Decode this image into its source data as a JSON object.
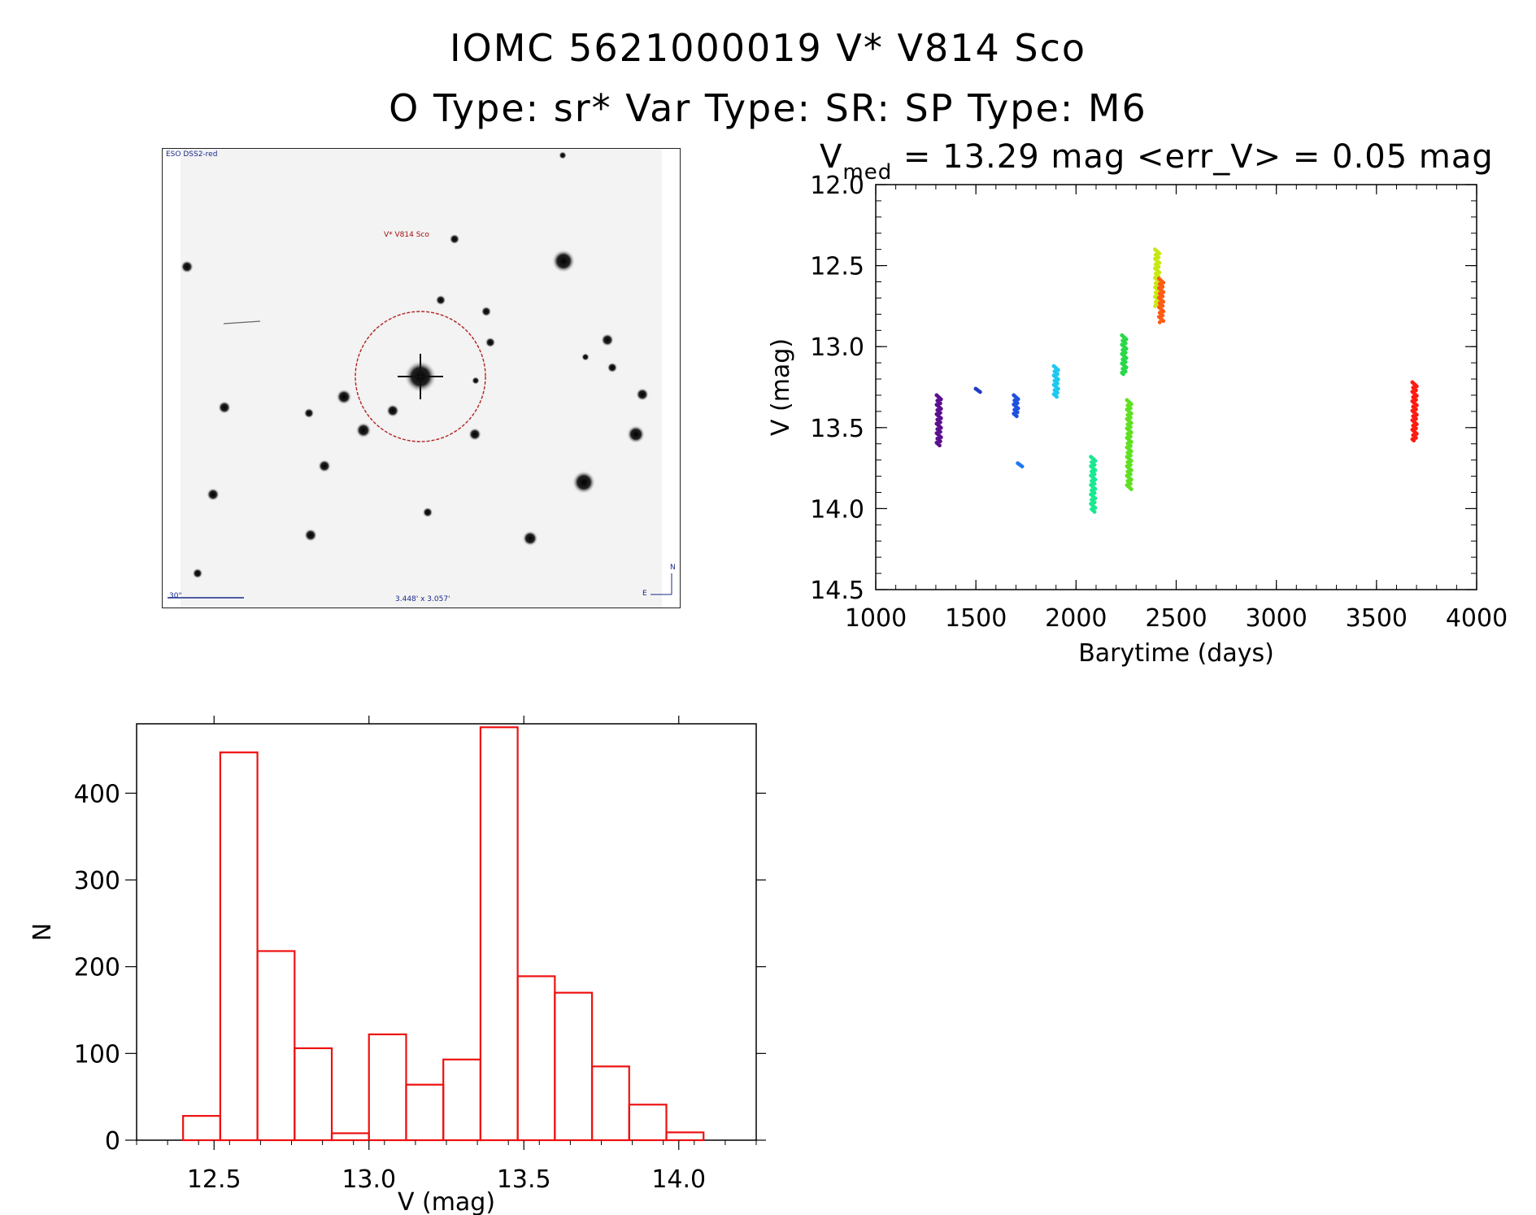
{
  "header": {
    "line1": "IOMC 5621000019    V* V814 Sco",
    "line2": "O Type: sr*  Var Type: SR:  SP Type: M6"
  },
  "finder": {
    "survey_label": "ESO DSS2-red",
    "target_label": "V* V814 Sco",
    "scale_label": "30\"",
    "fov_label": "3.448' x 3.057'",
    "compass_n": "N",
    "compass_e": "E",
    "target_circle_color": "#b22222"
  },
  "stats": {
    "v_symbol": "V",
    "v_sub": "med",
    "rest": " = 13.29 mag <err_V> = 0.05 mag"
  },
  "chart_data": [
    {
      "type": "scatter",
      "title": "V_med = 13.29 mag <err_V> = 0.05 mag",
      "xlabel": "Barytime (days)",
      "ylabel": "V (mag)",
      "xlim": [
        1000,
        4000
      ],
      "ylim": [
        14.5,
        12.0
      ],
      "y_inverted": true,
      "xticks": [
        "1000",
        "1500",
        "2000",
        "2500",
        "3000",
        "3500",
        "4000"
      ],
      "yticks": [
        "12.0",
        "12.5",
        "13.0",
        "13.5",
        "14.0",
        "14.5"
      ],
      "clusters": [
        {
          "x": 1315,
          "y_min": 13.3,
          "y_max": 13.61,
          "color": "#5b0f8f"
        },
        {
          "x": 1510,
          "y_min": 13.26,
          "y_max": 13.28,
          "color": "#1e3cc8"
        },
        {
          "x": 1700,
          "y_min": 13.3,
          "y_max": 13.43,
          "color": "#1e50e0"
        },
        {
          "x": 1720,
          "y_min": 13.72,
          "y_max": 13.74,
          "color": "#1e78f0"
        },
        {
          "x": 1900,
          "y_min": 13.12,
          "y_max": 13.31,
          "color": "#1cc8f0"
        },
        {
          "x": 2085,
          "y_min": 13.68,
          "y_max": 14.02,
          "color": "#18e890"
        },
        {
          "x": 2240,
          "y_min": 12.93,
          "y_max": 13.17,
          "color": "#28d848"
        },
        {
          "x": 2265,
          "y_min": 13.33,
          "y_max": 13.88,
          "color": "#5ee020"
        },
        {
          "x": 2405,
          "y_min": 12.4,
          "y_max": 12.75,
          "color": "#c8e810"
        },
        {
          "x": 2425,
          "y_min": 12.58,
          "y_max": 12.85,
          "color": "#ff5a14"
        },
        {
          "x": 3690,
          "y_min": 13.22,
          "y_max": 13.58,
          "color": "#ff1a10"
        }
      ]
    },
    {
      "type": "bar",
      "histogram": true,
      "xlabel": "V (mag)",
      "ylabel": "N",
      "xlim": [
        12.25,
        14.25
      ],
      "ylim": [
        0,
        480
      ],
      "xticks": [
        "12.5",
        "13.0",
        "13.5",
        "14.0"
      ],
      "yticks": [
        "0",
        "100",
        "200",
        "300",
        "400"
      ],
      "bin_edges": [
        12.4,
        12.52,
        12.64,
        12.76,
        12.88,
        13.0,
        13.12,
        13.24,
        13.36,
        13.48,
        13.6,
        13.72,
        13.84,
        13.96,
        14.08
      ],
      "counts": [
        28,
        447,
        218,
        106,
        8,
        122,
        64,
        93,
        476,
        189,
        170,
        85,
        41,
        9
      ],
      "bar_color": "#ee1111"
    }
  ]
}
